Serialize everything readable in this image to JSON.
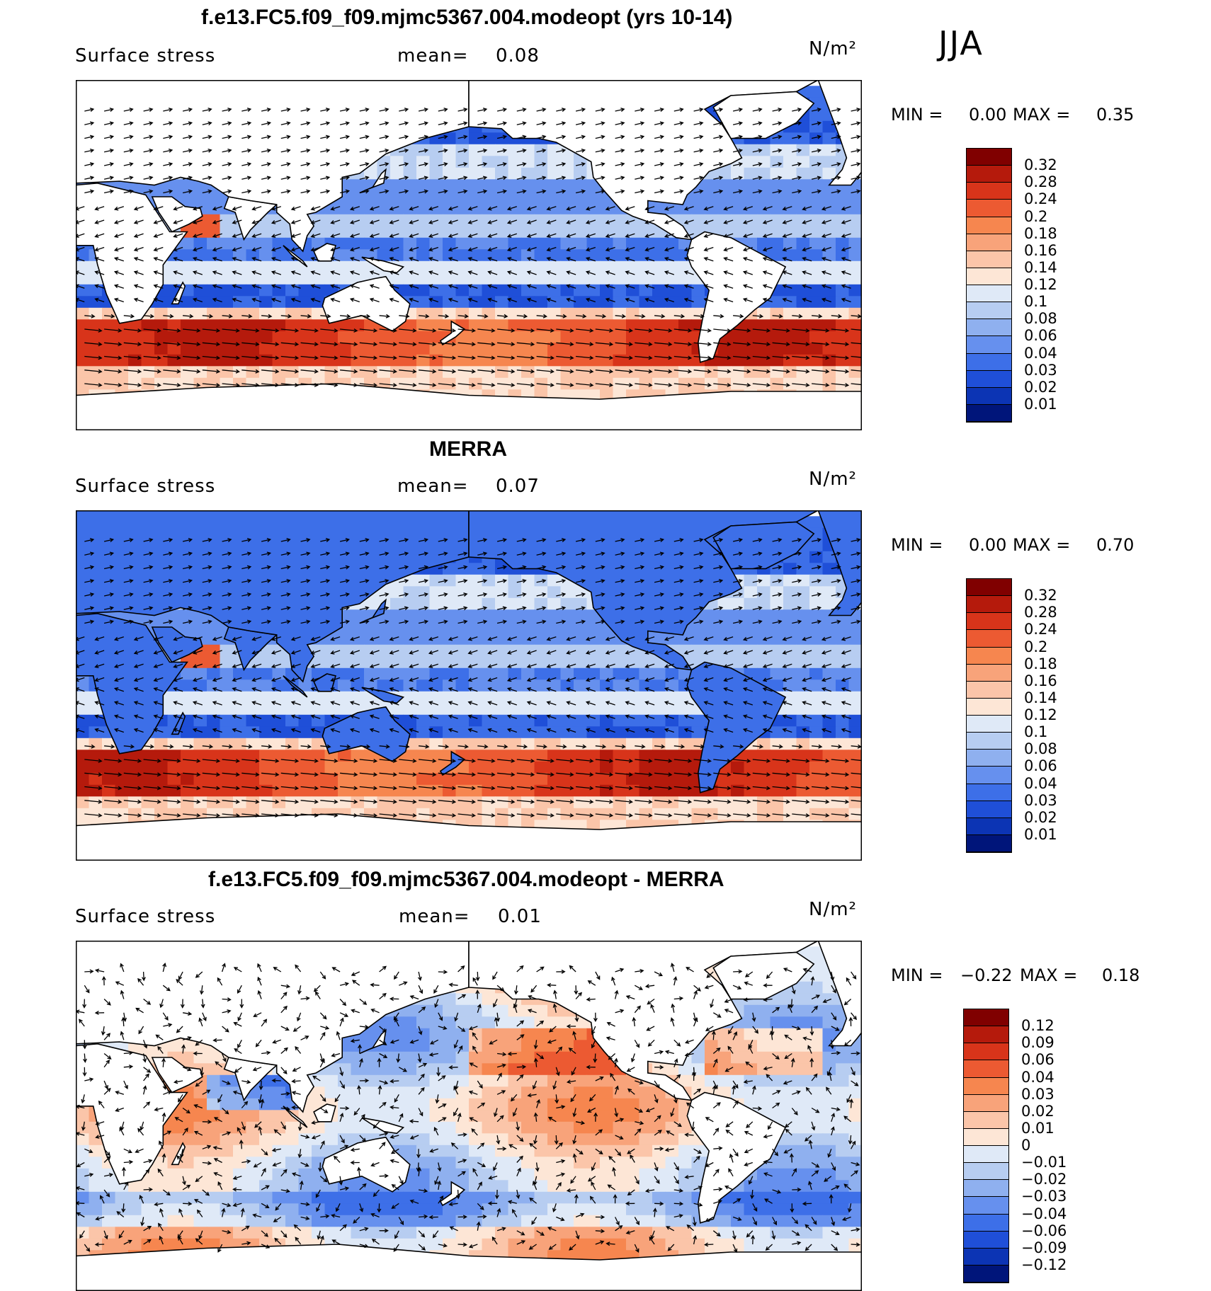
{
  "season": "JJA",
  "panels": [
    {
      "title": "f.e13.FC5.f09_f09.mjmc5367.004.modeopt (yrs 10-14)",
      "label": "Surface stress",
      "mean_label": "mean=",
      "mean_value": "0.08",
      "units": "N/m²",
      "min_label": "MIN =",
      "min_value": "0.00",
      "max_label": "MAX =",
      "max_value": "0.35",
      "kind": "model"
    },
    {
      "title": "MERRA",
      "label": "Surface stress",
      "mean_label": "mean=",
      "mean_value": "0.07",
      "units": "N/m²",
      "min_label": "MIN =",
      "min_value": "0.00",
      "max_label": "MAX =",
      "max_value": "0.70",
      "kind": "obs"
    },
    {
      "title": "f.e13.FC5.f09_f09.mjmc5367.004.modeopt - MERRA",
      "label": "Surface stress",
      "mean_label": "mean=",
      "mean_value": "0.01",
      "units": "N/m²",
      "min_label": "MIN =",
      "min_value": "−0.22",
      "max_label": "MAX =",
      "max_value": "0.18",
      "kind": "diff"
    }
  ],
  "colorbars": {
    "absolute": {
      "ticks": [
        "0.32",
        "0.28",
        "0.24",
        "0.2",
        "0.18",
        "0.16",
        "0.14",
        "0.12",
        "0.1",
        "0.08",
        "0.06",
        "0.04",
        "0.03",
        "0.02",
        "0.01"
      ],
      "colors": [
        "#800000",
        "#b51a0c",
        "#d8341a",
        "#ec5a32",
        "#f6864f",
        "#f8a37a",
        "#fbc5a9",
        "#fde6d6",
        "#dfe9f7",
        "#b7cdf1",
        "#8fb0ef",
        "#6690ee",
        "#3d6fe8",
        "#1f4fd8",
        "#0c34b4",
        "#00157a"
      ]
    },
    "difference": {
      "ticks": [
        "0.12",
        "0.09",
        "0.06",
        "0.04",
        "0.03",
        "0.02",
        "0.01",
        "0",
        "−0.01",
        "−0.02",
        "−0.03",
        "−0.04",
        "−0.06",
        "−0.09",
        "−0.12"
      ],
      "colors": [
        "#800000",
        "#b51a0c",
        "#d8341a",
        "#ec5a32",
        "#f6864f",
        "#f8a37a",
        "#fbc5a9",
        "#fde6d6",
        "#dfe9f7",
        "#b7cdf1",
        "#8fb0ef",
        "#6690ee",
        "#3d6fe8",
        "#1f4fd8",
        "#0c34b4",
        "#00157a"
      ]
    }
  },
  "chart_data": [
    {
      "type": "heatmap",
      "title": "f.e13.FC5.f09_f09.mjmc5367.004.modeopt (yrs 10-14)",
      "variable": "Surface stress",
      "units": "N/m²",
      "season": "JJA",
      "mean": 0.08,
      "min": 0.0,
      "max": 0.35,
      "colorbar_levels": [
        0.01,
        0.02,
        0.03,
        0.04,
        0.06,
        0.08,
        0.1,
        0.12,
        0.14,
        0.16,
        0.18,
        0.2,
        0.24,
        0.28,
        0.32
      ],
      "overlay": "stress vectors"
    },
    {
      "type": "heatmap",
      "title": "MERRA",
      "variable": "Surface stress",
      "units": "N/m²",
      "season": "JJA",
      "mean": 0.07,
      "min": 0.0,
      "max": 0.7,
      "colorbar_levels": [
        0.01,
        0.02,
        0.03,
        0.04,
        0.06,
        0.08,
        0.1,
        0.12,
        0.14,
        0.16,
        0.18,
        0.2,
        0.24,
        0.28,
        0.32
      ],
      "overlay": "stress vectors"
    },
    {
      "type": "heatmap",
      "title": "f.e13.FC5.f09_f09.mjmc5367.004.modeopt - MERRA",
      "variable": "Surface stress",
      "units": "N/m²",
      "season": "JJA",
      "mean": 0.01,
      "min": -0.22,
      "max": 0.18,
      "colorbar_levels": [
        -0.12,
        -0.09,
        -0.06,
        -0.04,
        -0.03,
        -0.02,
        -0.01,
        0,
        0.01,
        0.02,
        0.03,
        0.04,
        0.06,
        0.09,
        0.12
      ],
      "overlay": "stress difference vectors"
    }
  ]
}
